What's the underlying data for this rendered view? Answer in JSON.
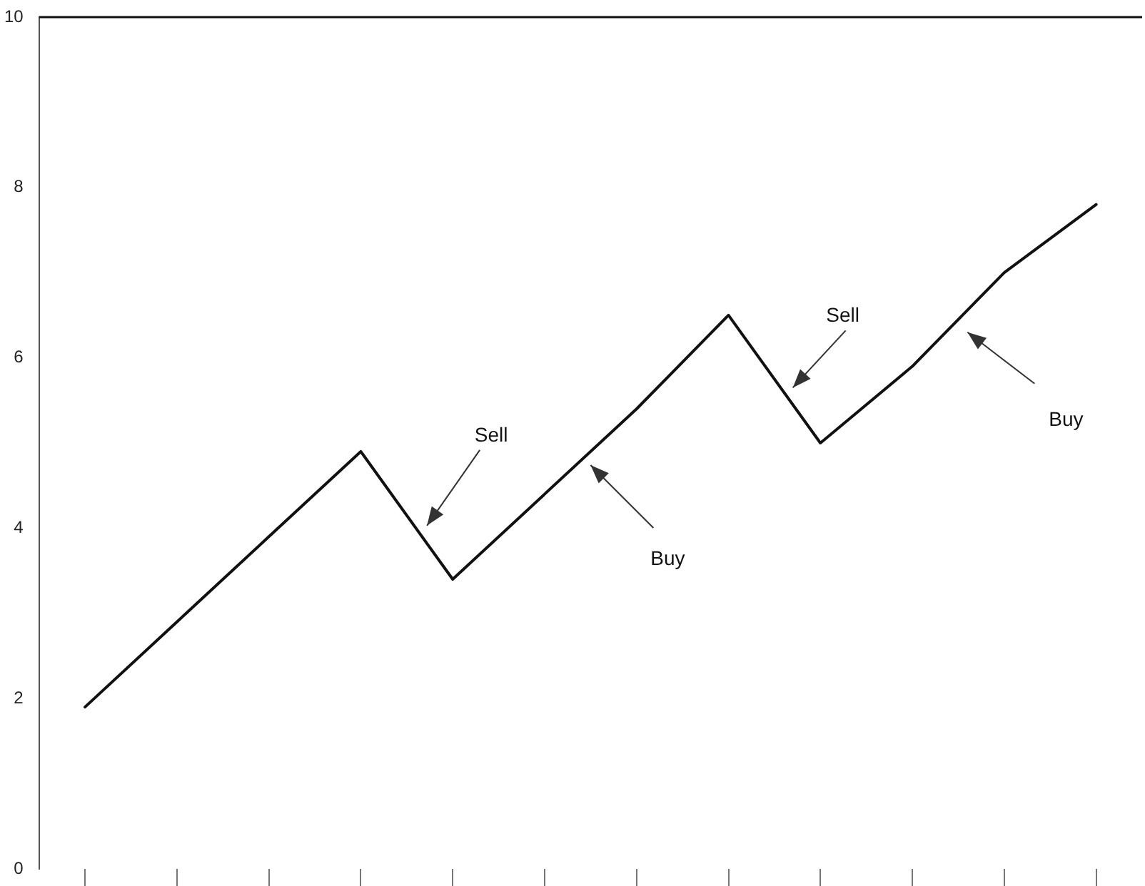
{
  "chart_data": {
    "type": "line",
    "categories": [
      null,
      null,
      null,
      null,
      null,
      null,
      null,
      null,
      null,
      null,
      null,
      null
    ],
    "series": [
      {
        "color": "#111111",
        "values": [
          1.9,
          2.9,
          3.9,
          4.9,
          3.4,
          4.4,
          5.4,
          6.5,
          5.0,
          5.9,
          7.0,
          7.8
        ]
      }
    ],
    "ylim": [
      0,
      10
    ],
    "yticks": [
      0,
      2,
      4,
      6,
      8,
      10
    ],
    "tick_labels": "y",
    "grid": false,
    "legend": false,
    "marker": "none",
    "line_style": "solid",
    "annotations": [
      "Sell",
      "Buy",
      "Sell",
      "Buy"
    ]
  }
}
